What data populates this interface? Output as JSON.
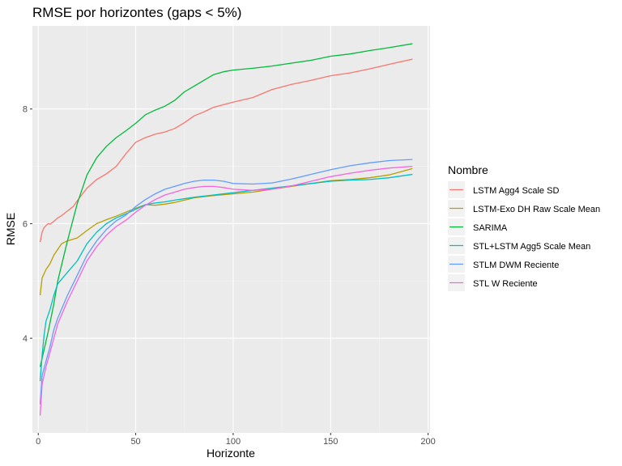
{
  "chart_data": {
    "type": "line",
    "title": "RMSE por horizontes (gaps < 5%)",
    "xlabel": "Horizonte",
    "ylabel": "RMSE",
    "xlim": [
      -3,
      201
    ],
    "ylim": [
      2.35,
      9.45
    ],
    "x_ticks": [
      0,
      50,
      100,
      150,
      200
    ],
    "x_tick_labels": [
      "0",
      "50",
      "100",
      "150",
      "200"
    ],
    "y_ticks": [
      4,
      6,
      8
    ],
    "y_tick_labels": [
      "4",
      "6",
      "8"
    ],
    "grid": true,
    "legend_title": "Nombre",
    "legend_position": "right",
    "series": [
      {
        "name": "LSTM Agg4 Scale SD",
        "color": "#F8766D",
        "points": [
          [
            1,
            5.68
          ],
          [
            2,
            5.85
          ],
          [
            3,
            5.93
          ],
          [
            5,
            6.0
          ],
          [
            6,
            5.99
          ],
          [
            8,
            6.04
          ],
          [
            10,
            6.1
          ],
          [
            12,
            6.14
          ],
          [
            15,
            6.22
          ],
          [
            18,
            6.3
          ],
          [
            20,
            6.4
          ],
          [
            25,
            6.62
          ],
          [
            30,
            6.77
          ],
          [
            35,
            6.87
          ],
          [
            40,
            7.0
          ],
          [
            45,
            7.22
          ],
          [
            50,
            7.42
          ],
          [
            55,
            7.5
          ],
          [
            60,
            7.56
          ],
          [
            65,
            7.6
          ],
          [
            70,
            7.66
          ],
          [
            75,
            7.76
          ],
          [
            80,
            7.88
          ],
          [
            85,
            7.95
          ],
          [
            90,
            8.03
          ],
          [
            100,
            8.12
          ],
          [
            110,
            8.2
          ],
          [
            120,
            8.34
          ],
          [
            130,
            8.43
          ],
          [
            140,
            8.5
          ],
          [
            150,
            8.58
          ],
          [
            160,
            8.63
          ],
          [
            170,
            8.7
          ],
          [
            180,
            8.78
          ],
          [
            192,
            8.87
          ]
        ]
      },
      {
        "name": "LSTM-Exo DH Raw Scale Mean",
        "color": "#B79F00",
        "points": [
          [
            1,
            4.75
          ],
          [
            2,
            5.05
          ],
          [
            4,
            5.2
          ],
          [
            6,
            5.3
          ],
          [
            8,
            5.45
          ],
          [
            10,
            5.55
          ],
          [
            12,
            5.65
          ],
          [
            15,
            5.7
          ],
          [
            20,
            5.75
          ],
          [
            25,
            5.88
          ],
          [
            30,
            6.0
          ],
          [
            35,
            6.07
          ],
          [
            40,
            6.13
          ],
          [
            45,
            6.2
          ],
          [
            50,
            6.27
          ],
          [
            55,
            6.33
          ],
          [
            60,
            6.32
          ],
          [
            65,
            6.34
          ],
          [
            70,
            6.37
          ],
          [
            80,
            6.45
          ],
          [
            90,
            6.49
          ],
          [
            100,
            6.52
          ],
          [
            110,
            6.55
          ],
          [
            120,
            6.6
          ],
          [
            130,
            6.65
          ],
          [
            140,
            6.7
          ],
          [
            150,
            6.75
          ],
          [
            160,
            6.77
          ],
          [
            170,
            6.8
          ],
          [
            180,
            6.85
          ],
          [
            192,
            6.96
          ]
        ]
      },
      {
        "name": "SARIMA",
        "color": "#00BA38",
        "points": [
          [
            1,
            3.5
          ],
          [
            3,
            3.8
          ],
          [
            5,
            4.1
          ],
          [
            8,
            4.6
          ],
          [
            10,
            5.0
          ],
          [
            15,
            5.7
          ],
          [
            20,
            6.35
          ],
          [
            25,
            6.85
          ],
          [
            30,
            7.15
          ],
          [
            35,
            7.35
          ],
          [
            40,
            7.5
          ],
          [
            45,
            7.62
          ],
          [
            50,
            7.75
          ],
          [
            55,
            7.9
          ],
          [
            60,
            7.98
          ],
          [
            65,
            8.05
          ],
          [
            70,
            8.15
          ],
          [
            75,
            8.3
          ],
          [
            80,
            8.4
          ],
          [
            85,
            8.5
          ],
          [
            90,
            8.6
          ],
          [
            95,
            8.65
          ],
          [
            100,
            8.68
          ],
          [
            110,
            8.71
          ],
          [
            120,
            8.75
          ],
          [
            130,
            8.8
          ],
          [
            140,
            8.85
          ],
          [
            150,
            8.92
          ],
          [
            160,
            8.96
          ],
          [
            170,
            9.02
          ],
          [
            180,
            9.07
          ],
          [
            192,
            9.14
          ]
        ]
      },
      {
        "name": "STL+LSTM Agg5 Scale Mean",
        "color": "#00BFC4",
        "points": [
          [
            1,
            3.25
          ],
          [
            2,
            3.7
          ],
          [
            3,
            4.05
          ],
          [
            4,
            4.3
          ],
          [
            6,
            4.5
          ],
          [
            8,
            4.75
          ],
          [
            10,
            4.95
          ],
          [
            15,
            5.15
          ],
          [
            20,
            5.35
          ],
          [
            25,
            5.65
          ],
          [
            30,
            5.85
          ],
          [
            35,
            6.0
          ],
          [
            40,
            6.1
          ],
          [
            45,
            6.17
          ],
          [
            50,
            6.25
          ],
          [
            55,
            6.33
          ],
          [
            60,
            6.36
          ],
          [
            65,
            6.38
          ],
          [
            70,
            6.41
          ],
          [
            80,
            6.46
          ],
          [
            90,
            6.5
          ],
          [
            100,
            6.54
          ],
          [
            110,
            6.58
          ],
          [
            120,
            6.62
          ],
          [
            130,
            6.66
          ],
          [
            140,
            6.7
          ],
          [
            150,
            6.74
          ],
          [
            160,
            6.76
          ],
          [
            170,
            6.77
          ],
          [
            180,
            6.8
          ],
          [
            192,
            6.86
          ]
        ]
      },
      {
        "name": "STLM DWM Reciente",
        "color": "#619CFF",
        "points": [
          [
            1,
            2.85
          ],
          [
            2,
            3.35
          ],
          [
            4,
            3.6
          ],
          [
            6,
            3.85
          ],
          [
            8,
            4.15
          ],
          [
            10,
            4.35
          ],
          [
            15,
            4.75
          ],
          [
            20,
            5.1
          ],
          [
            25,
            5.45
          ],
          [
            30,
            5.7
          ],
          [
            35,
            5.9
          ],
          [
            40,
            6.05
          ],
          [
            45,
            6.15
          ],
          [
            50,
            6.3
          ],
          [
            55,
            6.42
          ],
          [
            60,
            6.52
          ],
          [
            65,
            6.6
          ],
          [
            70,
            6.65
          ],
          [
            75,
            6.7
          ],
          [
            80,
            6.74
          ],
          [
            85,
            6.76
          ],
          [
            90,
            6.76
          ],
          [
            95,
            6.74
          ],
          [
            100,
            6.7
          ],
          [
            110,
            6.69
          ],
          [
            120,
            6.71
          ],
          [
            130,
            6.78
          ],
          [
            140,
            6.86
          ],
          [
            150,
            6.94
          ],
          [
            160,
            7.01
          ],
          [
            170,
            7.06
          ],
          [
            180,
            7.1
          ],
          [
            192,
            7.12
          ]
        ]
      },
      {
        "name": "STL W Reciente",
        "color": "#F564E3",
        "points": [
          [
            1,
            2.65
          ],
          [
            2,
            3.2
          ],
          [
            4,
            3.5
          ],
          [
            6,
            3.75
          ],
          [
            8,
            4.0
          ],
          [
            10,
            4.25
          ],
          [
            15,
            4.65
          ],
          [
            20,
            5.0
          ],
          [
            25,
            5.35
          ],
          [
            30,
            5.6
          ],
          [
            35,
            5.8
          ],
          [
            40,
            5.95
          ],
          [
            45,
            6.06
          ],
          [
            50,
            6.2
          ],
          [
            55,
            6.32
          ],
          [
            60,
            6.42
          ],
          [
            65,
            6.5
          ],
          [
            70,
            6.55
          ],
          [
            75,
            6.6
          ],
          [
            80,
            6.63
          ],
          [
            85,
            6.65
          ],
          [
            90,
            6.65
          ],
          [
            95,
            6.63
          ],
          [
            100,
            6.6
          ],
          [
            110,
            6.58
          ],
          [
            120,
            6.6
          ],
          [
            130,
            6.66
          ],
          [
            140,
            6.74
          ],
          [
            150,
            6.82
          ],
          [
            160,
            6.88
          ],
          [
            170,
            6.93
          ],
          [
            180,
            6.97
          ],
          [
            192,
            7.0
          ]
        ]
      }
    ]
  }
}
